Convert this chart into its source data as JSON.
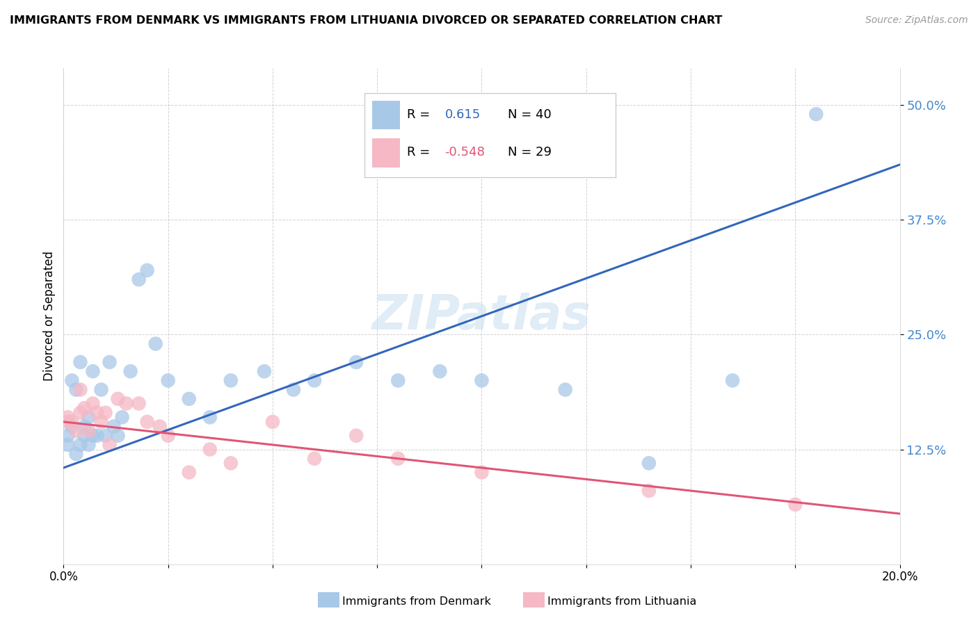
{
  "title": "IMMIGRANTS FROM DENMARK VS IMMIGRANTS FROM LITHUANIA DIVORCED OR SEPARATED CORRELATION CHART",
  "source": "Source: ZipAtlas.com",
  "ylabel": "Divorced or Separated",
  "ytick_labels": [
    "12.5%",
    "25.0%",
    "37.5%",
    "50.0%"
  ],
  "xlim": [
    0.0,
    0.2
  ],
  "ylim": [
    0.0,
    0.54
  ],
  "yticks": [
    0.125,
    0.25,
    0.375,
    0.5
  ],
  "xticks": [
    0.0,
    0.025,
    0.05,
    0.075,
    0.1,
    0.125,
    0.15,
    0.175,
    0.2
  ],
  "xtick_labels": [
    "0.0%",
    "",
    "",
    "",
    "",
    "",
    "",
    "",
    "20.0%"
  ],
  "legend_denmark_R": "0.615",
  "legend_denmark_N": "40",
  "legend_lithuania_R": "-0.548",
  "legend_lithuania_N": "29",
  "color_denmark": "#a8c8e8",
  "color_denmark_line": "#3366bb",
  "color_lithuania": "#f5b8c4",
  "color_lithuania_line": "#e05575",
  "watermark": "ZIPatlas",
  "denmark_x": [
    0.001,
    0.001,
    0.002,
    0.002,
    0.003,
    0.003,
    0.004,
    0.004,
    0.005,
    0.005,
    0.006,
    0.006,
    0.007,
    0.007,
    0.008,
    0.009,
    0.01,
    0.011,
    0.012,
    0.013,
    0.014,
    0.016,
    0.018,
    0.02,
    0.022,
    0.025,
    0.03,
    0.035,
    0.04,
    0.048,
    0.055,
    0.06,
    0.07,
    0.08,
    0.09,
    0.1,
    0.12,
    0.14,
    0.16,
    0.18
  ],
  "denmark_y": [
    0.14,
    0.13,
    0.2,
    0.15,
    0.12,
    0.19,
    0.13,
    0.22,
    0.15,
    0.14,
    0.13,
    0.16,
    0.14,
    0.21,
    0.14,
    0.19,
    0.14,
    0.22,
    0.15,
    0.14,
    0.16,
    0.21,
    0.31,
    0.32,
    0.24,
    0.2,
    0.18,
    0.16,
    0.2,
    0.21,
    0.19,
    0.2,
    0.22,
    0.2,
    0.21,
    0.2,
    0.19,
    0.11,
    0.2,
    0.49
  ],
  "lithuania_x": [
    0.001,
    0.001,
    0.002,
    0.003,
    0.004,
    0.004,
    0.005,
    0.006,
    0.007,
    0.008,
    0.009,
    0.01,
    0.011,
    0.013,
    0.015,
    0.018,
    0.02,
    0.023,
    0.025,
    0.03,
    0.035,
    0.04,
    0.05,
    0.06,
    0.07,
    0.08,
    0.1,
    0.14,
    0.175
  ],
  "lithuania_y": [
    0.155,
    0.16,
    0.155,
    0.145,
    0.19,
    0.165,
    0.17,
    0.145,
    0.175,
    0.165,
    0.155,
    0.165,
    0.13,
    0.18,
    0.175,
    0.175,
    0.155,
    0.15,
    0.14,
    0.1,
    0.125,
    0.11,
    0.155,
    0.115,
    0.14,
    0.115,
    0.1,
    0.08,
    0.065
  ],
  "dk_line_x0": 0.0,
  "dk_line_y0": 0.105,
  "dk_line_x1": 0.2,
  "dk_line_y1": 0.435,
  "lt_line_x0": 0.0,
  "lt_line_y0": 0.155,
  "lt_line_x1": 0.2,
  "lt_line_y1": 0.055
}
